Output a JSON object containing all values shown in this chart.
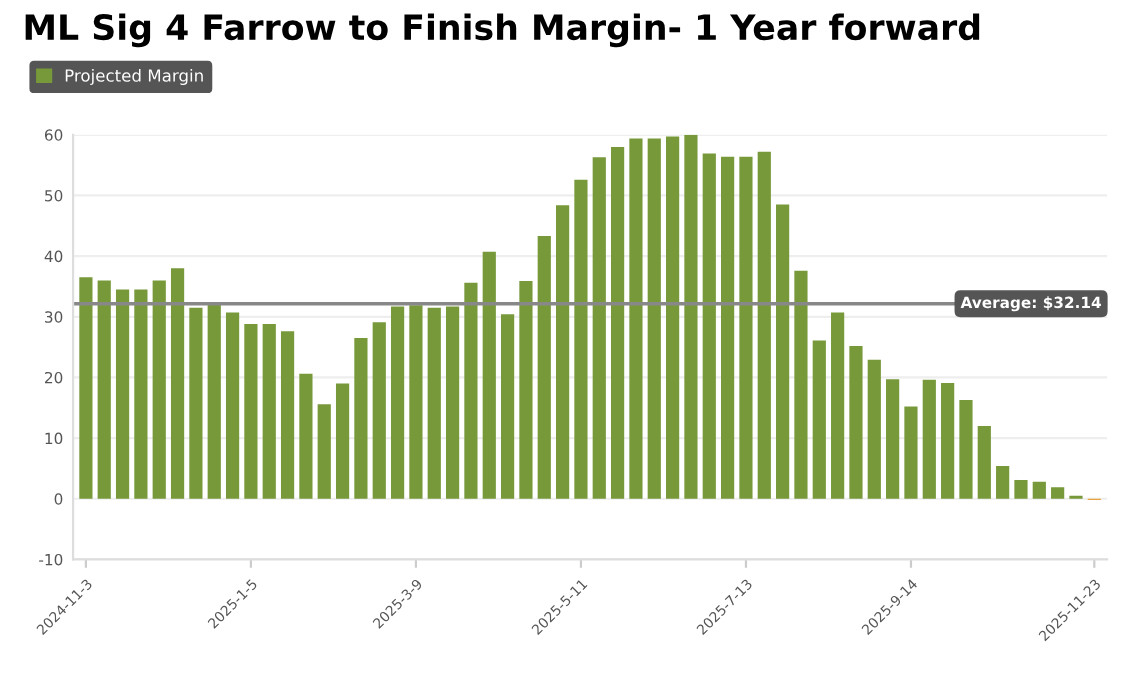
{
  "chart_data": {
    "type": "bar",
    "title": "ML Sig 4 Farrow to Finish Margin- 1 Year forward",
    "categories": [
      "2024-11-3",
      null,
      null,
      null,
      null,
      null,
      null,
      null,
      null,
      "2025-1-5",
      null,
      null,
      null,
      null,
      null,
      null,
      null,
      null,
      "2025-3-9",
      null,
      null,
      null,
      null,
      null,
      null,
      null,
      null,
      "2025-5-11",
      null,
      null,
      null,
      null,
      null,
      null,
      null,
      null,
      "2025-7-13",
      null,
      null,
      null,
      null,
      null,
      null,
      null,
      null,
      "2025-9-14",
      null,
      null,
      null,
      null,
      null,
      null,
      null,
      null,
      null,
      "2025-11-23"
    ],
    "series": [
      {
        "name": "Projected Margin",
        "color": "#77993a",
        "colors": [
          "#77993a",
          "#77993a",
          "#77993a",
          "#77993a",
          "#77993a",
          "#77993a",
          "#77993a",
          "#77993a",
          "#77993a",
          "#77993a",
          "#77993a",
          "#77993a",
          "#77993a",
          "#77993a",
          "#77993a",
          "#77993a",
          "#77993a",
          "#77993a",
          "#77993a",
          "#77993a",
          "#77993a",
          "#77993a",
          "#77993a",
          "#77993a",
          "#77993a",
          "#77993a",
          "#77993a",
          "#77993a",
          "#77993a",
          "#77993a",
          "#77993a",
          "#77993a",
          "#77993a",
          "#77993a",
          "#77993a",
          "#77993a",
          "#77993a",
          "#77993a",
          "#77993a",
          "#77993a",
          "#77993a",
          "#77993a",
          "#77993a",
          "#77993a",
          "#77993a",
          "#77993a",
          "#77993a",
          "#77993a",
          "#77993a",
          "#77993a",
          "#77993a",
          "#77993a",
          "#77993a",
          "#77993a",
          "#77993a",
          "#e8a33d"
        ],
        "values": [
          36.5,
          36,
          34.5,
          34.5,
          36,
          38,
          31.5,
          32.3,
          30.7,
          28.8,
          28.8,
          27.6,
          20.6,
          15.6,
          19,
          26.5,
          29.1,
          31.7,
          31.9,
          31.5,
          31.7,
          35.6,
          40.7,
          30.4,
          35.9,
          43.3,
          48.4,
          52.6,
          56.3,
          58.0,
          59.4,
          59.4,
          59.7,
          60.0,
          56.9,
          56.4,
          56.4,
          57.2,
          48.5,
          37.6,
          26.1,
          30.7,
          25.2,
          22.9,
          19.7,
          15.2,
          19.6,
          19.1,
          16.3,
          12.0,
          5.4,
          3.1,
          2.8,
          1.9,
          0.5,
          -0.2
        ]
      }
    ],
    "ylim": [
      -10,
      60
    ],
    "yticks": [
      -10,
      0,
      10,
      20,
      30,
      40,
      50,
      60
    ],
    "grid": "y",
    "legend": "top left",
    "ref_lines": [
      {
        "axis": "y",
        "value": 32.14,
        "label": "Average: $32.14",
        "color": "#888888"
      }
    ]
  }
}
